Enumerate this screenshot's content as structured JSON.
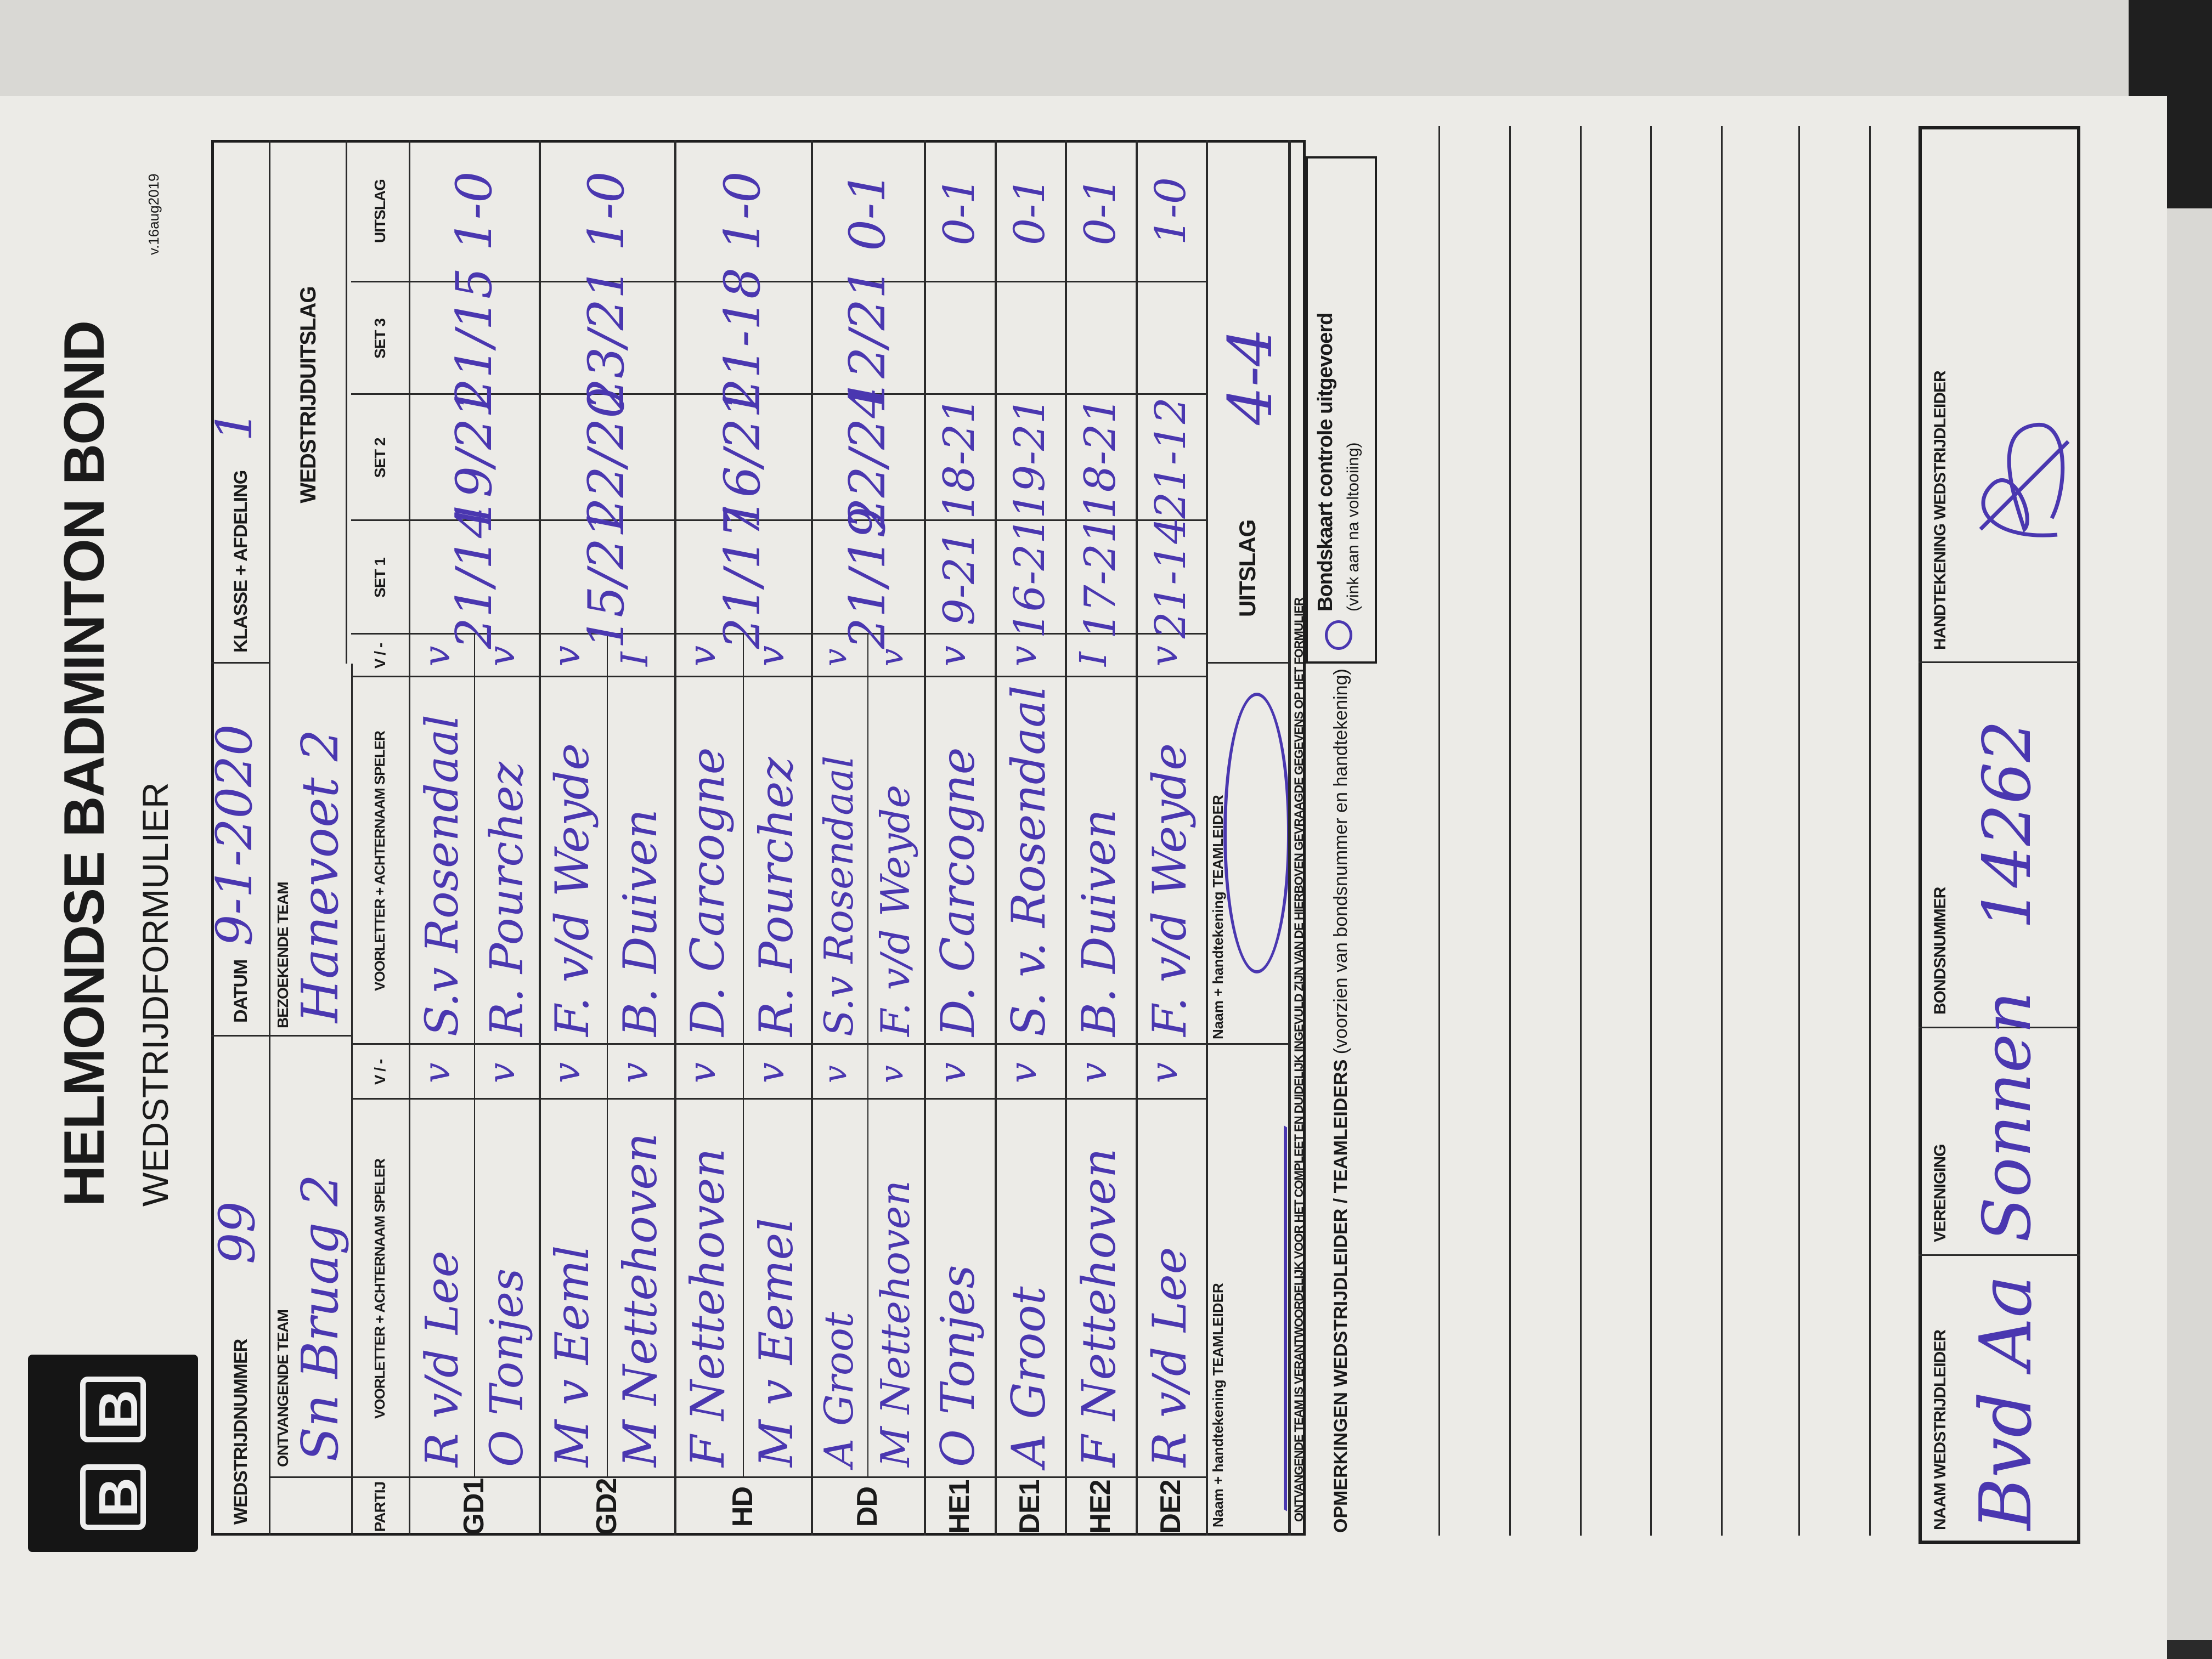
{
  "header": {
    "org_title": "HELMONDSE BADMINTON BOND",
    "form_title": "WEDSTRIJDFORMULIER",
    "version": "v.16aug2019",
    "logo_text": "BB"
  },
  "match_info": {
    "match_number_label": "WEDSTRIJDNUMMER",
    "match_number": "99",
    "date_label": "DATUM",
    "date": "9-1-2020",
    "class_label": "KLASSE + AFDELING",
    "class": "1",
    "home_team_label": "ONTVANGENDE TEAM",
    "home_team": "Sn Bruag 2",
    "away_team_label": "BEZOEKENDE TEAM",
    "away_team": "Hanevoet 2",
    "result_header": "WEDSTRIJDUITSLAG"
  },
  "table": {
    "headers": {
      "partij": "PARTIJ",
      "home_player": "VOORLETTER + ACHTERNAAM SPELER",
      "home_mark": "V / -",
      "away_player": "VOORLETTER + ACHTERNAAM SPELER",
      "away_mark": "V / -",
      "set1": "SET 1",
      "set2": "SET 2",
      "set3": "SET 3",
      "result": "UITSLAG"
    },
    "games": [
      {
        "code": "GD1",
        "players": [
          {
            "home": "R v/d Lee",
            "home_mark": "v",
            "away": "S.v Rosendaal",
            "away_mark": "v"
          },
          {
            "home": "O Tonjes",
            "home_mark": "v",
            "away": "R. Pourchez",
            "away_mark": "v"
          }
        ],
        "set1": "21/14",
        "set2": "19/21",
        "set3": "21/15",
        "result": "1-0"
      },
      {
        "code": "GD2",
        "players": [
          {
            "home": "M v Eeml",
            "home_mark": "v",
            "away": "F. v/d Weyde",
            "away_mark": "v"
          },
          {
            "home": "M Nettehoven",
            "home_mark": "v",
            "away": "B. Duiven",
            "away_mark": "I"
          }
        ],
        "set1": "15/21",
        "set2": "22/20",
        "set3": "23/21",
        "result": "1-0"
      },
      {
        "code": "HD",
        "players": [
          {
            "home": "F Nettehoven",
            "home_mark": "v",
            "away": "D. Carcogne",
            "away_mark": "v"
          },
          {
            "home": "M v Eemel",
            "home_mark": "v",
            "away": "R. Pourchez",
            "away_mark": "v"
          }
        ],
        "set1": "21/17",
        "set2": "16/21",
        "set3": "21-18",
        "result": "1-0"
      },
      {
        "code": "DD",
        "players": [
          {
            "home": "A Groot",
            "home_mark": "v",
            "away": "S.v Rosendaal",
            "away_mark": "v"
          },
          {
            "home": "M Nettehoven",
            "home_mark": "v",
            "away": "F. v/d Weyde",
            "away_mark": "v"
          }
        ],
        "set1": "21/19",
        "set2": "22/24",
        "set3": "12/21",
        "result": "0-1"
      },
      {
        "code": "HE1",
        "players": [
          {
            "home": "O Tonjes",
            "home_mark": "v",
            "away": "D. Carcogne",
            "away_mark": "v"
          }
        ],
        "set1": "9-21",
        "set2": "18-21",
        "set3": "",
        "result": "0-1"
      },
      {
        "code": "DE1",
        "players": [
          {
            "home": "A Groot",
            "home_mark": "v",
            "away": "S. v. Rosendaal",
            "away_mark": "v"
          }
        ],
        "set1": "16-21",
        "set2": "19-21",
        "set3": "",
        "result": "0-1"
      },
      {
        "code": "HE2",
        "players": [
          {
            "home": "F Nettehoven",
            "home_mark": "v",
            "away": "B. Duiven",
            "away_mark": "I"
          }
        ],
        "set1": "17-21",
        "set2": "18-21",
        "set3": "",
        "result": "0-1"
      },
      {
        "code": "DE2",
        "players": [
          {
            "home": "R v/d Lee",
            "home_mark": "v",
            "away": "F. v/d Weyde",
            "away_mark": "v"
          }
        ],
        "set1": "21-14",
        "set2": "21-12",
        "set3": "",
        "result": "1-0"
      }
    ],
    "home_leader_label": "Naam + handtekening TEAMLEIDER",
    "away_leader_label": "Naam + handtekening TEAMLEIDER",
    "final_label": "UITSLAG",
    "final_result": "4-4"
  },
  "notices": {
    "responsibility": "ONTVANGENDE TEAM IS VERANTWOORDELIJK VOOR HET COMPLEET EN DUIDELIJK INGEVULD ZIJN VAN DE HIERBOVEN GEVRAAGDE GEGEVENS OP HET FORMULIER",
    "check_label": "Bondskaart controle uitgevoerd",
    "check_hint": "(vink aan na voltooiing)",
    "check_checked": true,
    "remarks_label": "OPMERKINGEN WEDSTRIJDLEIDER / TEAMLEIDERS",
    "remarks_hint": "(voorzien van bondsnummer en handtekening)"
  },
  "referee": {
    "name_label": "NAAM WEDSTRIJDLEIDER",
    "name": "Bvd Aa",
    "club_label": "VERENIGING",
    "club": "Sonnen",
    "number_label": "BONDSNUMMER",
    "number": "14262",
    "signature_label": "HANDTEKENING WEDSTRIJDLEIDER"
  },
  "colors": {
    "ink": "#4a37b0",
    "paper": "#ecebe7",
    "lines": "#1e1e1e"
  }
}
